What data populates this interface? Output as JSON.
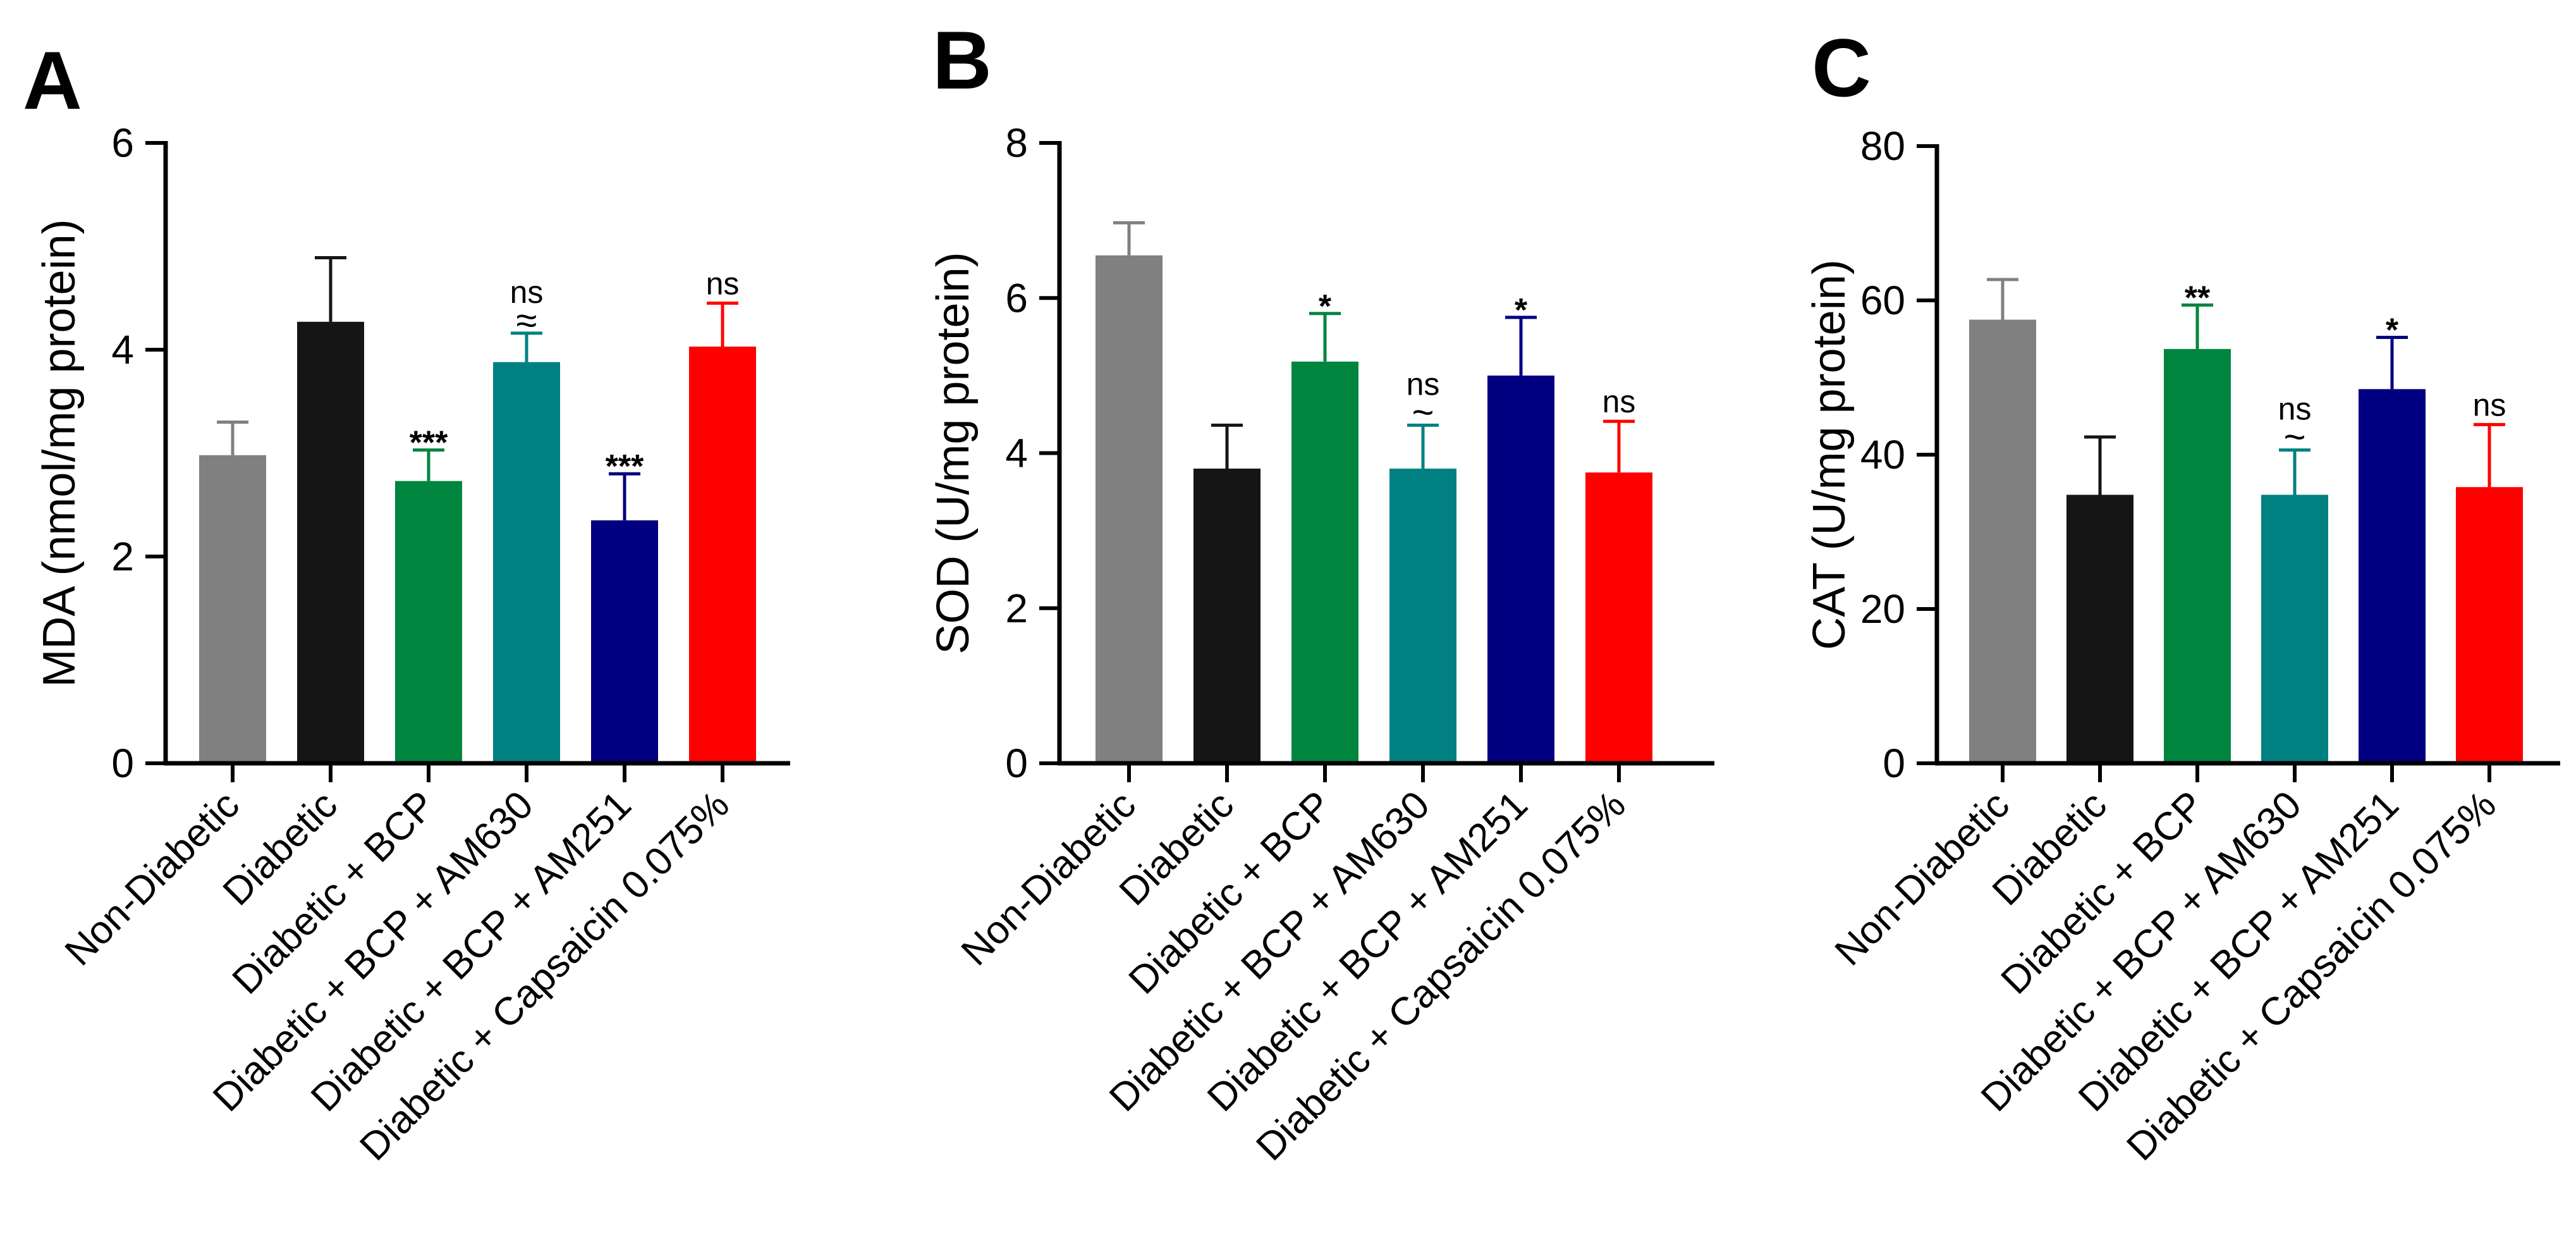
{
  "chart_data": [
    {
      "panel": "A",
      "type": "bar",
      "ylabel": "MDA (nmol/mg protein)",
      "ylim": [
        0,
        6
      ],
      "yticks": [
        0,
        2,
        4,
        6
      ],
      "categories": [
        "Non-Diabetic",
        "Diabetic",
        "Diabetic + BCP",
        "Diabetic + BCP + AM630",
        "Diabetic + BCP + AM251",
        "Diabetic + Capsaicin 0.075%"
      ],
      "values": [
        2.98,
        4.27,
        2.73,
        3.88,
        2.35,
        4.03
      ],
      "errors": [
        0.32,
        0.62,
        0.3,
        0.28,
        0.45,
        0.42
      ],
      "colors": [
        "#808080",
        "#151515",
        "#00853f",
        "#008080",
        "#000080",
        "#ff0000"
      ],
      "annotations": [
        {
          "stars": "",
          "tilde": ""
        },
        {
          "stars": "",
          "tilde": ""
        },
        {
          "stars": "***",
          "tilde": ""
        },
        {
          "stars": "ns",
          "tilde": "≈"
        },
        {
          "stars": "***",
          "tilde": ""
        },
        {
          "stars": "ns",
          "tilde": ""
        }
      ]
    },
    {
      "panel": "B",
      "type": "bar",
      "ylabel": "SOD (U/mg protein)",
      "ylim": [
        0,
        8
      ],
      "yticks": [
        0,
        2,
        4,
        6,
        8
      ],
      "categories": [
        "Non-Diabetic",
        "Diabetic",
        "Diabetic + BCP",
        "Diabetic + BCP + AM630",
        "Diabetic + BCP + AM251",
        "Diabetic + Capsaicin 0.075%"
      ],
      "values": [
        6.55,
        3.8,
        5.18,
        3.8,
        5.0,
        3.75
      ],
      "errors": [
        0.42,
        0.56,
        0.62,
        0.56,
        0.75,
        0.66
      ],
      "colors": [
        "#808080",
        "#151515",
        "#00853f",
        "#008080",
        "#000080",
        "#ff0000"
      ],
      "annotations": [
        {
          "stars": "",
          "tilde": ""
        },
        {
          "stars": "",
          "tilde": ""
        },
        {
          "stars": "*",
          "tilde": ""
        },
        {
          "stars": "ns",
          "tilde": "~"
        },
        {
          "stars": "*",
          "tilde": ""
        },
        {
          "stars": "ns",
          "tilde": ""
        }
      ]
    },
    {
      "panel": "C",
      "type": "bar",
      "ylabel": "CAT (U/mg protein)",
      "ylim": [
        0,
        80
      ],
      "yticks": [
        0,
        20,
        40,
        60,
        80
      ],
      "categories": [
        "Non-Diabetic",
        "Diabetic",
        "Diabetic + BCP",
        "Diabetic + BCP + AM630",
        "Diabetic + BCP + AM251",
        "Diabetic + Capsaicin 0.075%"
      ],
      "values": [
        57.5,
        34.8,
        53.7,
        34.8,
        48.5,
        35.8
      ],
      "errors": [
        5.2,
        7.5,
        5.7,
        5.8,
        6.7,
        8.1
      ],
      "colors": [
        "#808080",
        "#151515",
        "#00853f",
        "#008080",
        "#000080",
        "#ff0000"
      ],
      "annotations": [
        {
          "stars": "",
          "tilde": ""
        },
        {
          "stars": "",
          "tilde": ""
        },
        {
          "stars": "**",
          "tilde": ""
        },
        {
          "stars": "ns",
          "tilde": "~"
        },
        {
          "stars": "*",
          "tilde": ""
        },
        {
          "stars": "ns",
          "tilde": ""
        }
      ]
    }
  ]
}
